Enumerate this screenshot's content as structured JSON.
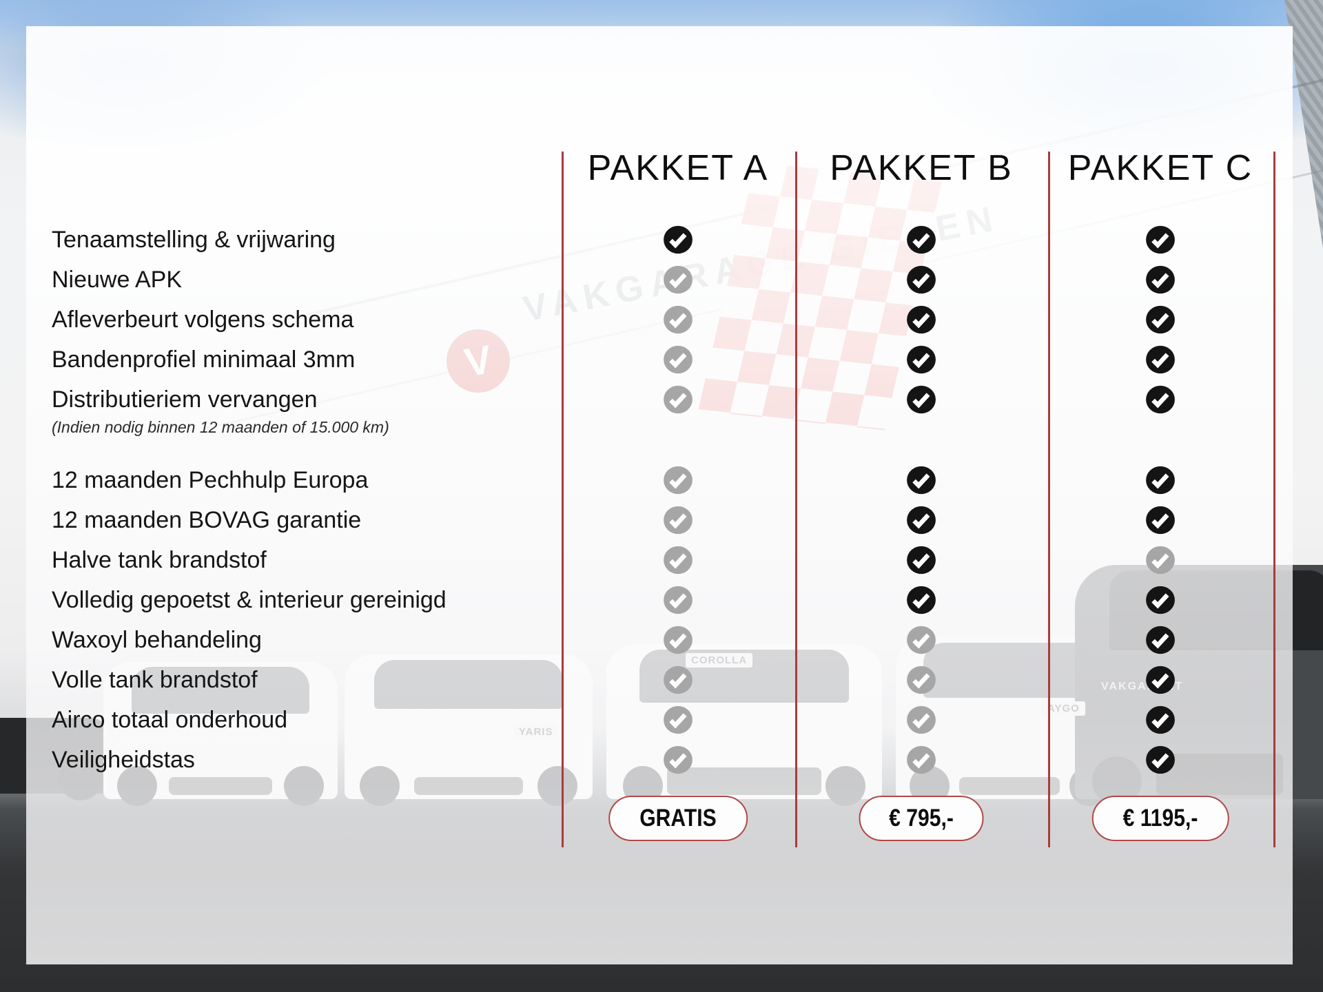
{
  "packages": [
    {
      "id": "A",
      "label": "PAKKET A",
      "price": "GRATIS"
    },
    {
      "id": "B",
      "label": "PAKKET B",
      "price": "€ 795,-"
    },
    {
      "id": "C",
      "label": "PAKKET C",
      "price": "€ 1195,-"
    }
  ],
  "features": [
    {
      "label": "Tenaamstelling & vrijwaring",
      "note": "",
      "included": [
        true,
        true,
        true
      ]
    },
    {
      "label": "Nieuwe APK",
      "note": "",
      "included": [
        false,
        true,
        true
      ]
    },
    {
      "label": "Afleverbeurt volgens schema",
      "note": "",
      "included": [
        false,
        true,
        true
      ]
    },
    {
      "label": "Bandenprofiel minimaal 3mm",
      "note": "",
      "included": [
        false,
        true,
        true
      ]
    },
    {
      "label": "Distributieriem vervangen",
      "note": "(Indien nodig binnen 12 maanden of 15.000 km)",
      "included": [
        false,
        true,
        true
      ]
    },
    {
      "label": "12 maanden Pechhulp Europa",
      "note": "",
      "included": [
        false,
        true,
        true
      ]
    },
    {
      "label": "12 maanden BOVAG garantie",
      "note": "",
      "included": [
        false,
        true,
        true
      ]
    },
    {
      "label": "Halve tank brandstof",
      "note": "",
      "included": [
        false,
        true,
        false
      ]
    },
    {
      "label": "Volledig gepoetst & interieur gereinigd",
      "note": "",
      "included": [
        false,
        true,
        true
      ]
    },
    {
      "label": "Waxoyl behandeling",
      "note": "",
      "included": [
        false,
        false,
        true
      ]
    },
    {
      "label": "Volle tank brandstof",
      "note": "",
      "included": [
        false,
        false,
        true
      ]
    },
    {
      "label": "Airco totaal onderhoud",
      "note": "",
      "included": [
        false,
        false,
        true
      ]
    },
    {
      "label": "Veiligheidstas",
      "note": "",
      "included": [
        false,
        false,
        true
      ]
    }
  ],
  "background": {
    "logo_letter": "V",
    "sign_text": "VAKGARAGE GIELEN",
    "badge_text": "VAKGARANT",
    "plate_yaris": "YARIS",
    "plate_aygo": "AYGO",
    "plate_corolla": "COROLLA"
  },
  "colors": {
    "accent_line": "#a83c3c",
    "pill_border": "#b24848",
    "check_on": "#141414",
    "check_off": "#a6a6a6"
  }
}
